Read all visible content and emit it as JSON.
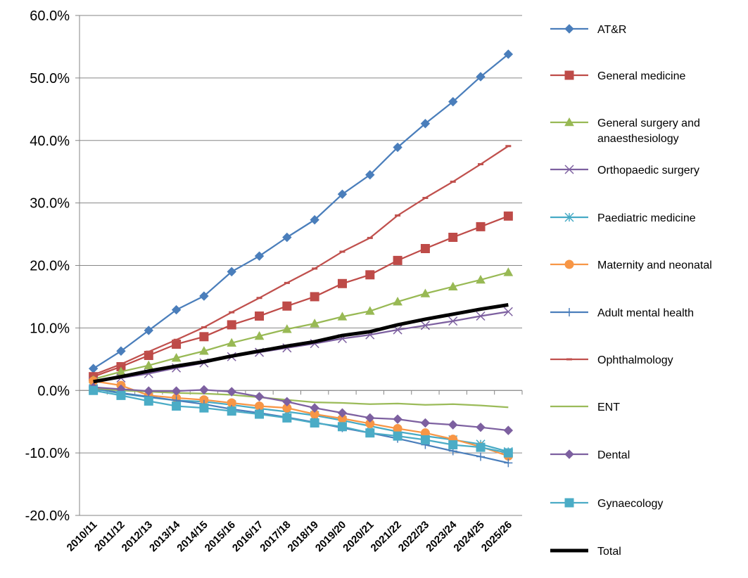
{
  "chart_data": {
    "type": "line",
    "categories": [
      "2010/11",
      "2011/12",
      "2012/13",
      "2013/14",
      "2014/15",
      "2015/16",
      "2016/17",
      "2017/18",
      "2018/19",
      "2019/20",
      "2020/21",
      "2021/22",
      "2022/23",
      "2023/24",
      "2024/25",
      "2025/26"
    ],
    "ylim": [
      -0.2,
      0.6
    ],
    "y_ticks": [
      -0.2,
      -0.1,
      0.0,
      0.1,
      0.2,
      0.3,
      0.4,
      0.5,
      0.6
    ],
    "y_tick_labels": [
      "-20.0%",
      "-10.0%",
      "0.0%",
      "10.0%",
      "20.0%",
      "30.0%",
      "40.0%",
      "50.0%",
      "60.0%"
    ],
    "grid": "horizontal",
    "legend_position": "right",
    "series": [
      {
        "name": "AT&R",
        "color": "#4a7ebb",
        "marker": "diamond",
        "values": [
          0.035,
          0.063,
          0.096,
          0.129,
          0.151,
          0.19,
          0.215,
          0.245,
          0.273,
          0.314,
          0.345,
          0.389,
          0.427,
          0.462,
          0.502,
          0.538
        ]
      },
      {
        "name": "General medicine",
        "color": "#be4b48",
        "marker": "square",
        "values": [
          0.022,
          0.038,
          0.056,
          0.074,
          0.086,
          0.105,
          0.119,
          0.135,
          0.15,
          0.171,
          0.185,
          0.208,
          0.227,
          0.245,
          0.262,
          0.279
        ]
      },
      {
        "name": "General surgery and anaesthesiology",
        "color": "#98b954",
        "marker": "triangle",
        "values": [
          0.018,
          0.03,
          0.04,
          0.052,
          0.063,
          0.076,
          0.087,
          0.098,
          0.107,
          0.118,
          0.127,
          0.142,
          0.155,
          0.166,
          0.177,
          0.189
        ]
      },
      {
        "name": "Orthopaedic surgery",
        "color": "#7d60a0",
        "marker": "x",
        "values": [
          0.014,
          0.02,
          0.027,
          0.036,
          0.044,
          0.054,
          0.061,
          0.068,
          0.075,
          0.083,
          0.089,
          0.097,
          0.104,
          0.111,
          0.119,
          0.126
        ]
      },
      {
        "name": "Paediatric medicine",
        "color": "#46aac5",
        "marker": "asterisk",
        "values": [
          0.003,
          -0.005,
          -0.011,
          -0.016,
          -0.018,
          -0.023,
          -0.029,
          -0.034,
          -0.04,
          -0.048,
          -0.057,
          -0.066,
          -0.073,
          -0.079,
          -0.086,
          -0.098
        ]
      },
      {
        "name": "Maternity and neonatal",
        "color": "#f79646",
        "marker": "circle",
        "values": [
          0.015,
          0.008,
          -0.008,
          -0.012,
          -0.015,
          -0.02,
          -0.025,
          -0.028,
          -0.038,
          -0.045,
          -0.053,
          -0.061,
          -0.068,
          -0.078,
          -0.09,
          -0.105
        ]
      },
      {
        "name": "Adult mental health",
        "color": "#4a7ebb",
        "marker": "plus",
        "values": [
          0.004,
          -0.004,
          -0.01,
          -0.016,
          -0.022,
          -0.03,
          -0.036,
          -0.043,
          -0.051,
          -0.06,
          -0.068,
          -0.077,
          -0.087,
          -0.097,
          -0.106,
          -0.116
        ]
      },
      {
        "name": "Ophthalmology",
        "color": "#c0504d",
        "marker": "dash",
        "values": [
          0.025,
          0.042,
          0.062,
          0.081,
          0.101,
          0.125,
          0.148,
          0.172,
          0.195,
          0.222,
          0.244,
          0.28,
          0.308,
          0.334,
          0.362,
          0.391
        ]
      },
      {
        "name": "ENT",
        "color": "#9bbb59",
        "marker": "none",
        "values": [
          0.004,
          0.0,
          -0.002,
          -0.004,
          -0.005,
          -0.007,
          -0.011,
          -0.015,
          -0.019,
          -0.02,
          -0.022,
          -0.021,
          -0.023,
          -0.022,
          -0.024,
          -0.027
        ]
      },
      {
        "name": "Dental",
        "color": "#7d60a0",
        "marker": "diamond",
        "values": [
          0.005,
          0.002,
          -0.001,
          -0.001,
          0.001,
          -0.002,
          -0.01,
          -0.018,
          -0.028,
          -0.036,
          -0.044,
          -0.046,
          -0.052,
          -0.055,
          -0.059,
          -0.064
        ]
      },
      {
        "name": "Gynaecology",
        "color": "#4bacc6",
        "marker": "square",
        "values": [
          0.0,
          -0.008,
          -0.017,
          -0.025,
          -0.028,
          -0.033,
          -0.038,
          -0.044,
          -0.052,
          -0.058,
          -0.068,
          -0.073,
          -0.079,
          -0.087,
          -0.091,
          -0.1
        ]
      },
      {
        "name": "Total",
        "color": "#000000",
        "marker": "none",
        "thick": true,
        "values": [
          0.014,
          0.022,
          0.031,
          0.039,
          0.046,
          0.055,
          0.063,
          0.071,
          0.078,
          0.088,
          0.094,
          0.105,
          0.114,
          0.122,
          0.13,
          0.137
        ]
      }
    ]
  }
}
